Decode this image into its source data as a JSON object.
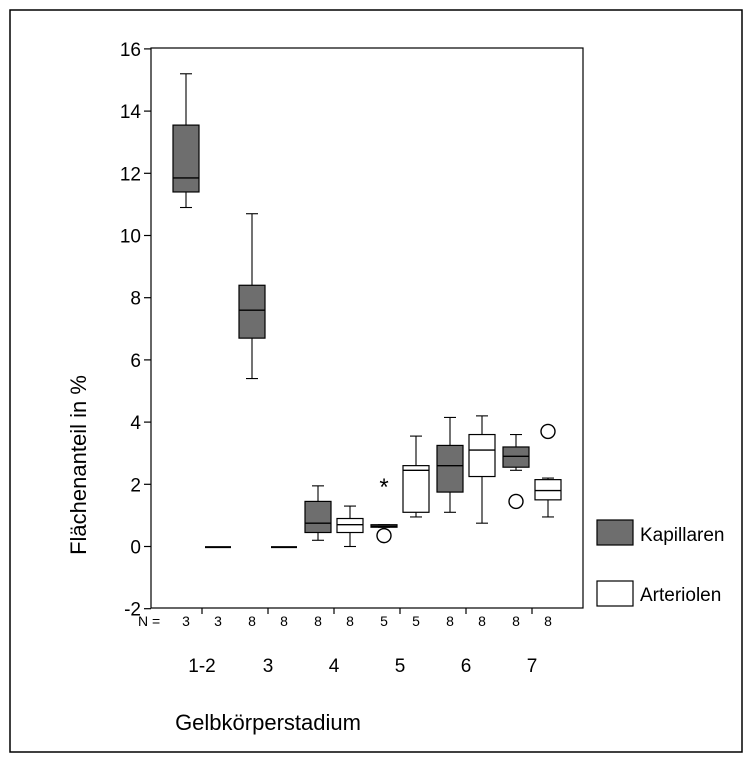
{
  "chart_data": {
    "type": "box",
    "xlabel": "Gelbkörperstadium",
    "ylabel": "Flächenanteil in %",
    "ylim": [
      -2,
      16
    ],
    "yticks": [
      -2,
      0,
      2,
      4,
      6,
      8,
      10,
      12,
      14,
      16
    ],
    "n_prefix": "N =",
    "categories": [
      "1-2",
      "3",
      "4",
      "5",
      "6",
      "7"
    ],
    "series": [
      {
        "name": "Kapillaren",
        "color": "#6e6e6e",
        "n": [
          "3",
          "8",
          "8",
          "5",
          "8",
          "8"
        ],
        "boxes": [
          {
            "min": 10.9,
            "q1": 11.4,
            "median": 11.85,
            "q3": 13.55,
            "max": 15.2
          },
          {
            "min": 5.4,
            "q1": 6.7,
            "median": 7.6,
            "q3": 8.4,
            "max": 10.7
          },
          {
            "min": 0.2,
            "q1": 0.45,
            "median": 0.75,
            "q3": 1.45,
            "max": 1.95
          },
          {
            "min": 0.62,
            "q1": 0.62,
            "median": 0.65,
            "q3": 0.7,
            "max": 0.7,
            "outliers": [
              {
                "value": 0.35,
                "marker": "circle"
              }
            ],
            "extremes": [
              {
                "value": 1.95,
                "marker": "star"
              }
            ]
          },
          {
            "min": 1.1,
            "q1": 1.75,
            "median": 2.6,
            "q3": 3.25,
            "max": 4.15
          },
          {
            "min": 2.45,
            "q1": 2.55,
            "median": 2.9,
            "q3": 3.2,
            "max": 3.6,
            "outliers": [
              {
                "value": 1.45,
                "marker": "circle"
              }
            ]
          }
        ]
      },
      {
        "name": "Arteriolen",
        "color": "#ffffff",
        "n": [
          "3",
          "8",
          "8",
          "5",
          "8",
          "8"
        ],
        "boxes": [
          {
            "min": -0.02,
            "q1": -0.02,
            "median": -0.02,
            "q3": -0.02,
            "max": -0.02
          },
          {
            "min": -0.02,
            "q1": -0.02,
            "median": -0.02,
            "q3": -0.02,
            "max": -0.02
          },
          {
            "min": 0.0,
            "q1": 0.45,
            "median": 0.7,
            "q3": 0.9,
            "max": 1.3
          },
          {
            "min": 0.95,
            "q1": 1.1,
            "median": 2.45,
            "q3": 2.6,
            "max": 3.55
          },
          {
            "min": 0.75,
            "q1": 2.25,
            "median": 3.1,
            "q3": 3.6,
            "max": 4.2
          },
          {
            "min": 0.95,
            "q1": 1.5,
            "median": 1.8,
            "q3": 2.15,
            "max": 2.2,
            "outliers": [
              {
                "value": 3.7,
                "marker": "circle"
              }
            ]
          }
        ]
      }
    ],
    "legend": {
      "position": "right"
    }
  }
}
